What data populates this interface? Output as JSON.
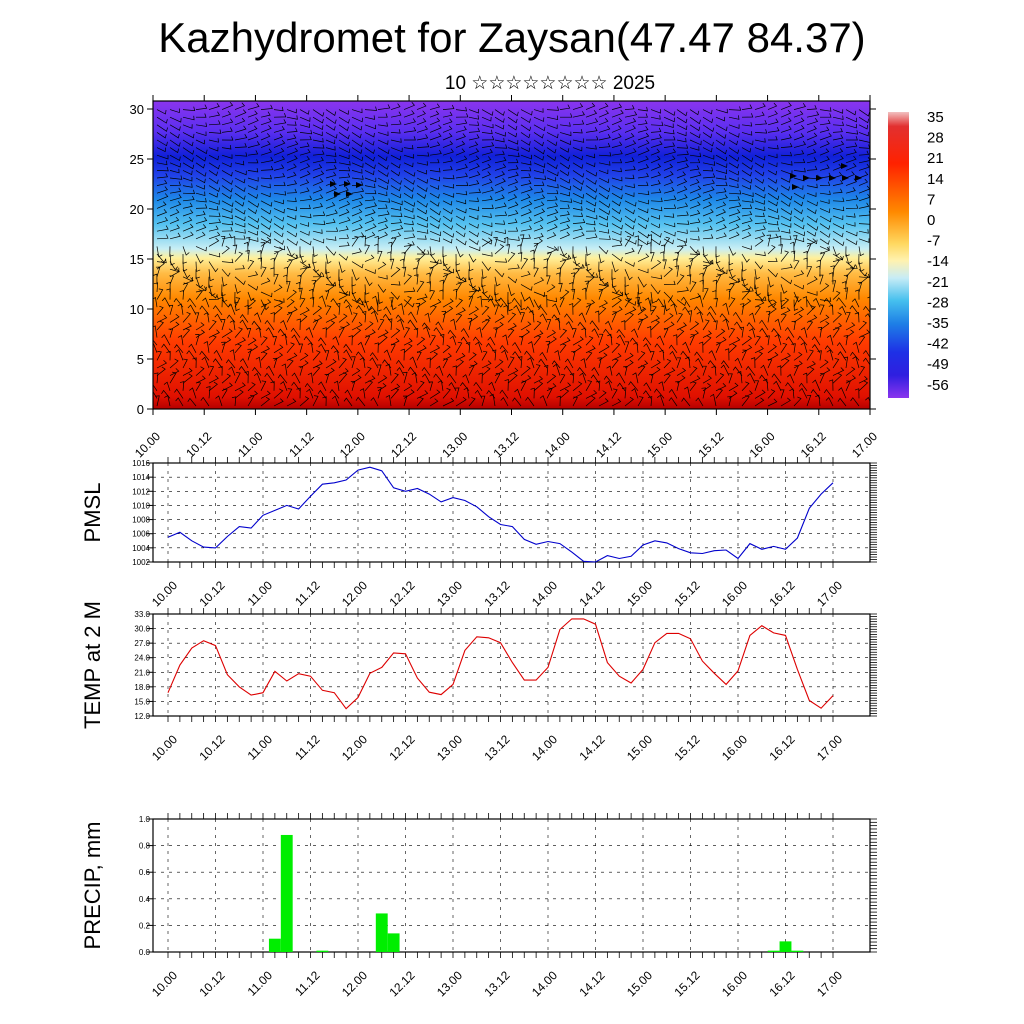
{
  "title": "Kazhydromet for Zaysan(47.47 84.37)",
  "subtitle": "10 ☆☆☆☆☆☆☆☆ 2025",
  "chart_data": [
    {
      "type": "heatmap",
      "description_panel": "vertical cross-section with wind barbs",
      "x_ticks": [
        "10.00",
        "10.12",
        "11.00",
        "11.12",
        "12.00",
        "12.12",
        "13.00",
        "13.12",
        "14.00",
        "14.12",
        "15.00",
        "15.12",
        "16.00",
        "16.12",
        "17.00"
      ],
      "y_ticks": [
        0,
        5,
        10,
        15,
        20,
        25,
        30
      ],
      "ylim": [
        0,
        30.8
      ],
      "colorbar_labels": [
        35,
        28,
        21,
        14,
        7,
        0,
        -7,
        -14,
        -21,
        -28,
        -35,
        -42,
        -49,
        -56
      ]
    },
    {
      "type": "line",
      "ylabel": "PMSL",
      "x_ticks": [
        "10.00",
        "10.12",
        "11.00",
        "11.12",
        "12.00",
        "12.12",
        "13.00",
        "13.12",
        "14.00",
        "14.12",
        "15.00",
        "15.12",
        "16.00",
        "16.12",
        "17.00"
      ],
      "y_ticks": [
        1002,
        1004,
        1006,
        1008,
        1010,
        1012,
        1014,
        1016
      ],
      "ylim": [
        1002,
        1016
      ],
      "color": "#0000cc",
      "x": [
        0,
        3,
        6,
        9,
        12,
        15,
        18,
        21,
        24,
        27,
        30,
        33,
        36,
        39,
        42,
        45,
        48,
        51,
        54,
        57,
        60,
        63,
        66,
        69,
        72,
        75,
        78,
        81,
        84,
        87,
        90,
        93,
        96,
        99,
        102,
        105,
        108,
        111,
        114,
        117,
        120,
        123,
        126,
        129,
        132,
        135,
        138,
        141,
        144,
        147,
        150,
        153,
        156,
        159,
        162,
        165,
        168
      ],
      "values": [
        1005.5,
        1006.2,
        1005,
        1004.1,
        1004,
        1005.6,
        1007,
        1006.8,
        1008.6,
        1009.3,
        1010,
        1009.5,
        1011.3,
        1013,
        1013.2,
        1013.6,
        1015,
        1015.4,
        1014.9,
        1012.5,
        1012,
        1012.4,
        1011.6,
        1010.5,
        1011.1,
        1010.7,
        1009.8,
        1008.4,
        1007.3,
        1007,
        1005.2,
        1004.5,
        1004.9,
        1004.6,
        1003.4,
        1002.1,
        1002,
        1002.9,
        1002.5,
        1002.8,
        1004.4,
        1005,
        1004.7,
        1003.9,
        1003.3,
        1003.2,
        1003.6,
        1003.7,
        1002.5,
        1004.6,
        1003.8,
        1004.2,
        1003.8,
        1005.4,
        1009.6,
        1011.6,
        1013.2
      ]
    },
    {
      "type": "line",
      "ylabel": "TEMP at 2 M",
      "x_ticks": [
        "10.00",
        "10.12",
        "11.00",
        "11.12",
        "12.00",
        "12.12",
        "13.00",
        "13.12",
        "14.00",
        "14.12",
        "15.00",
        "15.12",
        "16.00",
        "16.12",
        "17.00"
      ],
      "y_ticks": [
        "12.0",
        "15.0",
        "18.0",
        "21.0",
        "24.0",
        "27.0",
        "30.0",
        "33.0"
      ],
      "ylim": [
        12,
        33
      ],
      "color": "#dd0000",
      "x": [
        0,
        3,
        6,
        9,
        12,
        15,
        18,
        21,
        24,
        27,
        30,
        33,
        36,
        39,
        42,
        45,
        48,
        51,
        54,
        57,
        60,
        63,
        66,
        69,
        72,
        75,
        78,
        81,
        84,
        87,
        90,
        93,
        96,
        99,
        102,
        105,
        108,
        111,
        114,
        117,
        120,
        123,
        126,
        129,
        132,
        135,
        138,
        141,
        144,
        147,
        150,
        153,
        156,
        159,
        162,
        165,
        168
      ],
      "values": [
        16.8,
        22.5,
        26,
        27.5,
        26.5,
        20.5,
        18,
        16.3,
        16.8,
        21.2,
        19.2,
        20.7,
        20.2,
        17.3,
        16.8,
        13.5,
        15.8,
        20.8,
        22,
        25,
        24.8,
        19.8,
        16.9,
        16.4,
        18.5,
        25.5,
        28.3,
        28.1,
        27.1,
        23,
        19.4,
        19.4,
        22,
        29.8,
        32,
        32,
        30.9,
        23,
        20.2,
        18.8,
        21.6,
        27.1,
        29,
        29,
        27.9,
        23.3,
        20.8,
        18.5,
        21.3,
        28.6,
        30.6,
        29.1,
        28.6,
        21.6,
        15.2,
        13.6,
        16.2
      ]
    },
    {
      "type": "bar",
      "ylabel": "PRECIP, mm",
      "x_ticks": [
        "10.00",
        "10.12",
        "11.00",
        "11.12",
        "12.00",
        "12.12",
        "13.00",
        "13.12",
        "14.00",
        "14.12",
        "15.00",
        "15.12",
        "16.00",
        "16.12",
        "17.00"
      ],
      "y_ticks": [
        "0.0",
        "0.2",
        "0.4",
        "0.6",
        "0.8",
        "1.0"
      ],
      "ylim": [
        0,
        1
      ],
      "color": "#00ee00",
      "bars": [
        {
          "x": 27,
          "value": 0.1
        },
        {
          "x": 30,
          "value": 0.88
        },
        {
          "x": 39,
          "value": 0.01
        },
        {
          "x": 54,
          "value": 0.29
        },
        {
          "x": 57,
          "value": 0.14
        },
        {
          "x": 153,
          "value": 0.01
        },
        {
          "x": 156,
          "value": 0.08
        },
        {
          "x": 159,
          "value": 0.01
        }
      ]
    }
  ]
}
